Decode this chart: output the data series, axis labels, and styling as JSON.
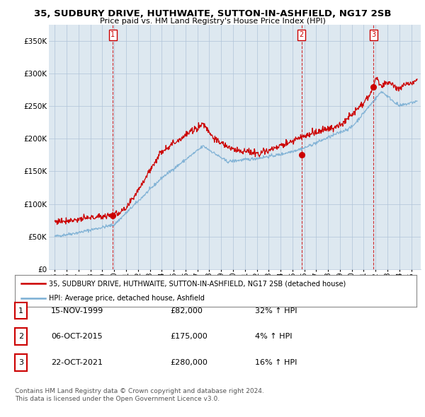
{
  "title": "35, SUDBURY DRIVE, HUTHWAITE, SUTTON-IN-ASHFIELD, NG17 2SB",
  "subtitle": "Price paid vs. HM Land Registry's House Price Index (HPI)",
  "ylabel_ticks": [
    "£0",
    "£50K",
    "£100K",
    "£150K",
    "£200K",
    "£250K",
    "£300K",
    "£350K"
  ],
  "ytick_values": [
    0,
    50000,
    100000,
    150000,
    200000,
    250000,
    300000,
    350000
  ],
  "ylim": [
    0,
    375000
  ],
  "sale_year_nums": [
    1999.88,
    2015.77,
    2021.81
  ],
  "sale_prices": [
    82000,
    175000,
    280000
  ],
  "sale_labels": [
    "1",
    "2",
    "3"
  ],
  "legend_line1": "35, SUDBURY DRIVE, HUTHWAITE, SUTTON-IN-ASHFIELD, NG17 2SB (detached house)",
  "legend_line2": "HPI: Average price, detached house, Ashfield",
  "table_data": [
    [
      "1",
      "15-NOV-1999",
      "£82,000",
      "32% ↑ HPI"
    ],
    [
      "2",
      "06-OCT-2015",
      "£175,000",
      "4% ↑ HPI"
    ],
    [
      "3",
      "22-OCT-2021",
      "£280,000",
      "16% ↑ HPI"
    ]
  ],
  "footnote1": "Contains HM Land Registry data © Crown copyright and database right 2024.",
  "footnote2": "This data is licensed under the Open Government Licence v3.0.",
  "red_color": "#cc0000",
  "blue_color": "#7bafd4",
  "chart_bg": "#dde8f0",
  "background_color": "#ffffff",
  "grid_color": "#b0c4d8"
}
